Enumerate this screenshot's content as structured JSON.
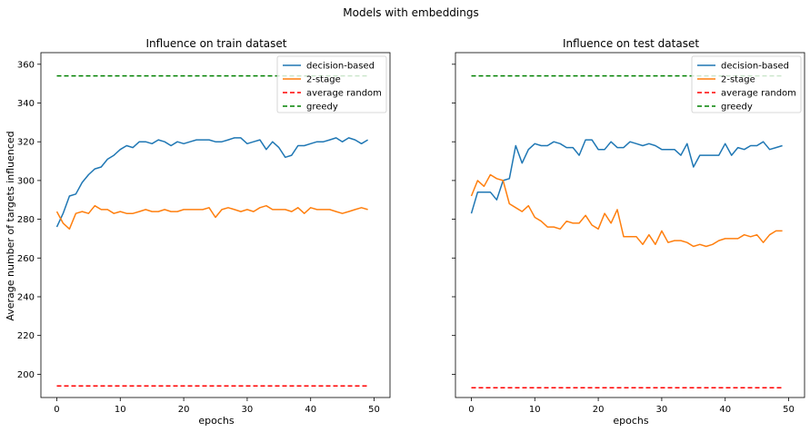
{
  "figure": {
    "suptitle": "Models with embeddings"
  },
  "chart_data": [
    {
      "type": "line",
      "title": "Influence on train dataset",
      "xlabel": "epochs",
      "ylabel": "Average number of targets influenced",
      "xlim": [
        -2.5,
        52.5
      ],
      "ylim": [
        188,
        366
      ],
      "xticks": [
        0,
        10,
        20,
        30,
        40,
        50
      ],
      "yticks": [
        200,
        220,
        240,
        260,
        280,
        300,
        320,
        340,
        360
      ],
      "legend_position": "top-right",
      "series": [
        {
          "name": "decision-based",
          "color": "#1f77b4",
          "dash": "solid",
          "x": [
            0,
            1,
            2,
            3,
            4,
            5,
            6,
            7,
            8,
            9,
            10,
            11,
            12,
            13,
            14,
            15,
            16,
            17,
            18,
            19,
            20,
            21,
            22,
            23,
            24,
            25,
            26,
            27,
            28,
            29,
            30,
            31,
            32,
            33,
            34,
            35,
            36,
            37,
            38,
            39,
            40,
            41,
            42,
            43,
            44,
            45,
            46,
            47,
            48,
            49
          ],
          "y": [
            276,
            283,
            292,
            293,
            299,
            303,
            306,
            307,
            311,
            313,
            316,
            318,
            317,
            320,
            320,
            319,
            321,
            320,
            318,
            320,
            319,
            320,
            321,
            321,
            321,
            320,
            320,
            321,
            322,
            322,
            319,
            320,
            321,
            316,
            320,
            317,
            312,
            313,
            318,
            318,
            319,
            320,
            320,
            321,
            322,
            320,
            322,
            321,
            319,
            321
          ]
        },
        {
          "name": "2-stage",
          "color": "#ff7f0e",
          "dash": "solid",
          "x": [
            0,
            1,
            2,
            3,
            4,
            5,
            6,
            7,
            8,
            9,
            10,
            11,
            12,
            13,
            14,
            15,
            16,
            17,
            18,
            19,
            20,
            21,
            22,
            23,
            24,
            25,
            26,
            27,
            28,
            29,
            30,
            31,
            32,
            33,
            34,
            35,
            36,
            37,
            38,
            39,
            40,
            41,
            42,
            43,
            44,
            45,
            46,
            47,
            48,
            49
          ],
          "y": [
            284,
            278,
            275,
            283,
            284,
            283,
            287,
            285,
            285,
            283,
            284,
            283,
            283,
            284,
            285,
            284,
            284,
            285,
            284,
            284,
            285,
            285,
            285,
            285,
            286,
            281,
            285,
            286,
            285,
            284,
            285,
            284,
            286,
            287,
            285,
            285,
            285,
            284,
            286,
            283,
            286,
            285,
            285,
            285,
            284,
            283,
            284,
            285,
            286,
            285
          ]
        },
        {
          "name": "average random",
          "color": "#ff0000",
          "dash": "dashed",
          "x": [
            0,
            49
          ],
          "y": [
            194,
            194
          ]
        },
        {
          "name": "greedy",
          "color": "#008000",
          "dash": "dashed",
          "x": [
            0,
            49
          ],
          "y": [
            354,
            354
          ]
        }
      ]
    },
    {
      "type": "line",
      "title": "Influence on test dataset",
      "xlabel": "epochs",
      "ylabel": "",
      "xlim": [
        -2.5,
        52.5
      ],
      "ylim": [
        188,
        366
      ],
      "xticks": [
        0,
        10,
        20,
        30,
        40,
        50
      ],
      "yticks": [
        200,
        220,
        240,
        260,
        280,
        300,
        320,
        340,
        360
      ],
      "legend_position": "top-right",
      "series": [
        {
          "name": "decision-based",
          "color": "#1f77b4",
          "dash": "solid",
          "x": [
            0,
            1,
            2,
            3,
            4,
            5,
            6,
            7,
            8,
            9,
            10,
            11,
            12,
            13,
            14,
            15,
            16,
            17,
            18,
            19,
            20,
            21,
            22,
            23,
            24,
            25,
            26,
            27,
            28,
            29,
            30,
            31,
            32,
            33,
            34,
            35,
            36,
            37,
            38,
            39,
            40,
            41,
            42,
            43,
            44,
            45,
            46,
            47,
            48,
            49
          ],
          "y": [
            283,
            294,
            294,
            294,
            290,
            300,
            301,
            318,
            309,
            316,
            319,
            318,
            318,
            320,
            319,
            317,
            317,
            313,
            321,
            321,
            316,
            316,
            320,
            317,
            317,
            320,
            319,
            318,
            319,
            318,
            316,
            316,
            316,
            313,
            319,
            307,
            313,
            313,
            313,
            313,
            319,
            313,
            317,
            316,
            318,
            318,
            320,
            316,
            317,
            318
          ]
        },
        {
          "name": "2-stage",
          "color": "#ff7f0e",
          "dash": "solid",
          "x": [
            0,
            1,
            2,
            3,
            4,
            5,
            6,
            7,
            8,
            9,
            10,
            11,
            12,
            13,
            14,
            15,
            16,
            17,
            18,
            19,
            20,
            21,
            22,
            23,
            24,
            25,
            26,
            27,
            28,
            29,
            30,
            31,
            32,
            33,
            34,
            35,
            36,
            37,
            38,
            39,
            40,
            41,
            42,
            43,
            44,
            45,
            46,
            47,
            48,
            49
          ],
          "y": [
            292,
            300,
            297,
            303,
            301,
            300,
            288,
            286,
            284,
            287,
            281,
            279,
            276,
            276,
            275,
            279,
            278,
            278,
            282,
            277,
            275,
            283,
            278,
            285,
            271,
            271,
            271,
            267,
            272,
            267,
            274,
            268,
            269,
            269,
            268,
            266,
            267,
            266,
            267,
            269,
            270,
            270,
            270,
            272,
            271,
            272,
            268,
            272,
            274,
            274
          ]
        },
        {
          "name": "average random",
          "color": "#ff0000",
          "dash": "dashed",
          "x": [
            0,
            49
          ],
          "y": [
            193,
            193
          ]
        },
        {
          "name": "greedy",
          "color": "#008000",
          "dash": "dashed",
          "x": [
            0,
            49
          ],
          "y": [
            354,
            354
          ]
        }
      ]
    }
  ]
}
